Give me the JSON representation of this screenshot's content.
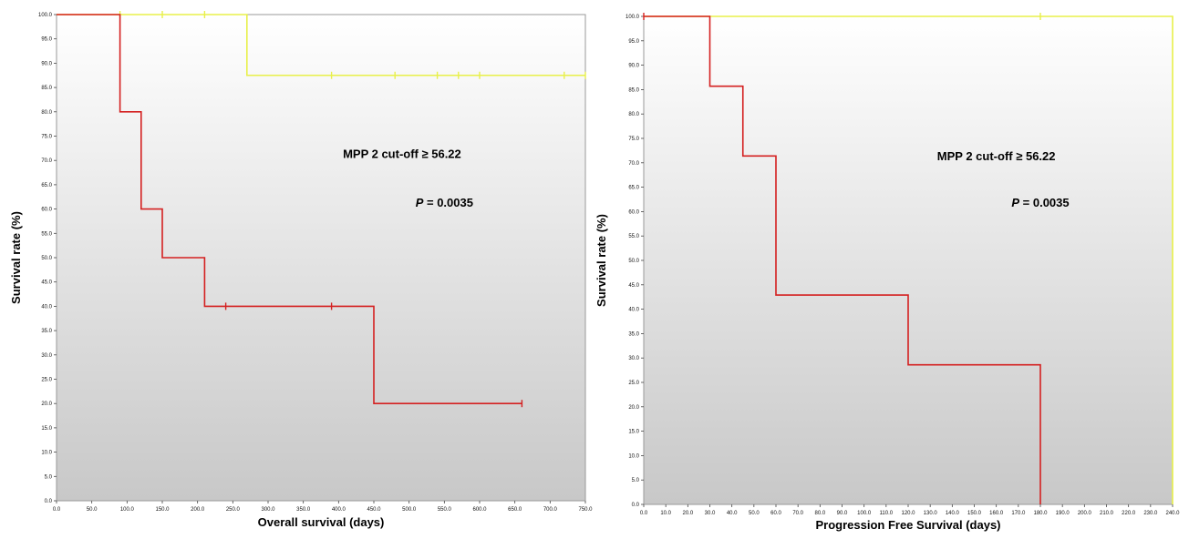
{
  "chart_data": [
    {
      "type": "line",
      "subtype": "kaplan-meier",
      "xlabel": "Overall survival (days)",
      "ylabel": "Survival rate (%)",
      "xlim": [
        0,
        750
      ],
      "ylim": [
        0,
        100
      ],
      "x_ticks": [
        "0.0",
        "50.0",
        "100.0",
        "150.0",
        "200.0",
        "250.0",
        "300.0",
        "350.0",
        "400.0",
        "450.0",
        "500.0",
        "550.0",
        "600.0",
        "650.0",
        "700.0",
        "750.0"
      ],
      "y_ticks": [
        "0.0",
        "5.0",
        "10.0",
        "15.0",
        "20.0",
        "25.0",
        "30.0",
        "35.0",
        "40.0",
        "45.0",
        "50.0",
        "55.0",
        "60.0",
        "65.0",
        "70.0",
        "75.0",
        "80.0",
        "85.0",
        "90.0",
        "95.0",
        "100.0"
      ],
      "grid": false,
      "annotations": [
        {
          "text": "MPP 2 cut-off ≥ 56.22",
          "x": 490,
          "y": 70.5
        },
        {
          "p_label": "P",
          "p_value": " = 0.0035",
          "x": 550,
          "y": 60.5
        }
      ],
      "series": [
        {
          "color": "#e8f04a",
          "steps": [
            [
              0,
              100
            ],
            [
              270,
              100
            ],
            [
              270,
              87.5
            ],
            [
              750,
              87.5
            ]
          ],
          "censored": [
            [
              90,
              100
            ],
            [
              150,
              100
            ],
            [
              210,
              100
            ],
            [
              390,
              87.5
            ],
            [
              480,
              87.5
            ],
            [
              540,
              87.5
            ],
            [
              570,
              87.5
            ],
            [
              600,
              87.5
            ],
            [
              720,
              87.5
            ],
            [
              750,
              87.5
            ]
          ]
        },
        {
          "color": "#d42020",
          "steps": [
            [
              0,
              100
            ],
            [
              90,
              100
            ],
            [
              90,
              80
            ],
            [
              120,
              80
            ],
            [
              120,
              60
            ],
            [
              150,
              60
            ],
            [
              150,
              50
            ],
            [
              210,
              50
            ],
            [
              210,
              40
            ],
            [
              450,
              40
            ],
            [
              450,
              20
            ],
            [
              660,
              20
            ]
          ],
          "censored": [
            [
              240,
              40
            ],
            [
              390,
              40
            ],
            [
              660,
              20
            ]
          ]
        }
      ]
    },
    {
      "type": "line",
      "subtype": "kaplan-meier",
      "xlabel": "Progression Free Survival (days)",
      "ylabel": "Survival rate (%)",
      "xlim": [
        0,
        240
      ],
      "ylim": [
        0,
        100
      ],
      "x_ticks": [
        "0.0",
        "10.0",
        "20.0",
        "30.0",
        "40.0",
        "50.0",
        "60.0",
        "70.0",
        "80.0",
        "90.0",
        "100.0",
        "110.0",
        "120.0",
        "130.0",
        "140.0",
        "150.0",
        "160.0",
        "170.0",
        "180.0",
        "190.0",
        "200.0",
        "210.0",
        "220.0",
        "230.0",
        "240.0"
      ],
      "y_ticks": [
        "0.0",
        "5.0",
        "10.0",
        "15.0",
        "20.0",
        "25.0",
        "30.0",
        "35.0",
        "40.0",
        "45.0",
        "50.0",
        "55.0",
        "60.0",
        "65.0",
        "70.0",
        "75.0",
        "80.0",
        "85.0",
        "90.0",
        "95.0",
        "100.0"
      ],
      "grid": false,
      "annotations": [
        {
          "text": "MPP 2 cut-off ≥ 56.22",
          "x": 160,
          "y": 70.5
        },
        {
          "p_label": "P",
          "p_value": " = 0.0035",
          "x": 180,
          "y": 61.0
        }
      ],
      "series": [
        {
          "color": "#e8f04a",
          "steps": [
            [
              0,
              100
            ],
            [
              240,
              100
            ],
            [
              240,
              0
            ]
          ],
          "censored": [
            [
              180,
              100
            ]
          ]
        },
        {
          "color": "#d42020",
          "steps": [
            [
              0,
              100
            ],
            [
              30,
              100
            ],
            [
              30,
              85.7
            ],
            [
              45,
              85.7
            ],
            [
              45,
              71.4
            ],
            [
              60,
              71.4
            ],
            [
              60,
              42.9
            ],
            [
              120,
              42.9
            ],
            [
              120,
              28.6
            ],
            [
              180,
              28.6
            ],
            [
              180,
              0
            ]
          ],
          "censored": [
            [
              0,
              100
            ]
          ]
        }
      ]
    }
  ]
}
